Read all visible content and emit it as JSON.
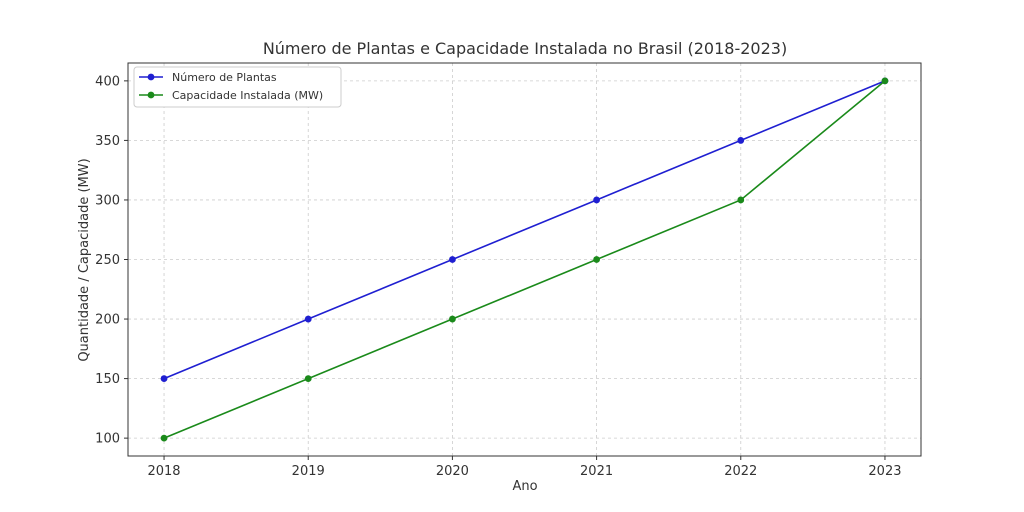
{
  "chart_data": {
    "type": "line",
    "title": "Número de Plantas e Capacidade Instalada no Brasil (2018-2023)",
    "xlabel": "Ano",
    "ylabel": "Quantidade / Capacidade (MW)",
    "x": [
      2018,
      2019,
      2020,
      2021,
      2022,
      2023
    ],
    "x_tick_labels": [
      "2018",
      "2019",
      "2020",
      "2021",
      "2022",
      "2023"
    ],
    "y_ticks": [
      100,
      150,
      200,
      250,
      300,
      350,
      400
    ],
    "y_tick_labels": [
      "100",
      "150",
      "200",
      "250",
      "300",
      "350",
      "400"
    ],
    "xlim": [
      2017.75,
      2023.25
    ],
    "ylim": [
      85,
      415
    ],
    "grid": true,
    "legend_position": "top-left",
    "series": [
      {
        "name": "Número de Plantas",
        "color": "#1f1fd1",
        "marker": "circle",
        "values": [
          150,
          200,
          250,
          300,
          350,
          400
        ]
      },
      {
        "name": "Capacidade Instalada (MW)",
        "color": "#1a8a1a",
        "marker": "circle",
        "values": [
          100,
          150,
          200,
          250,
          300,
          400
        ]
      }
    ]
  }
}
